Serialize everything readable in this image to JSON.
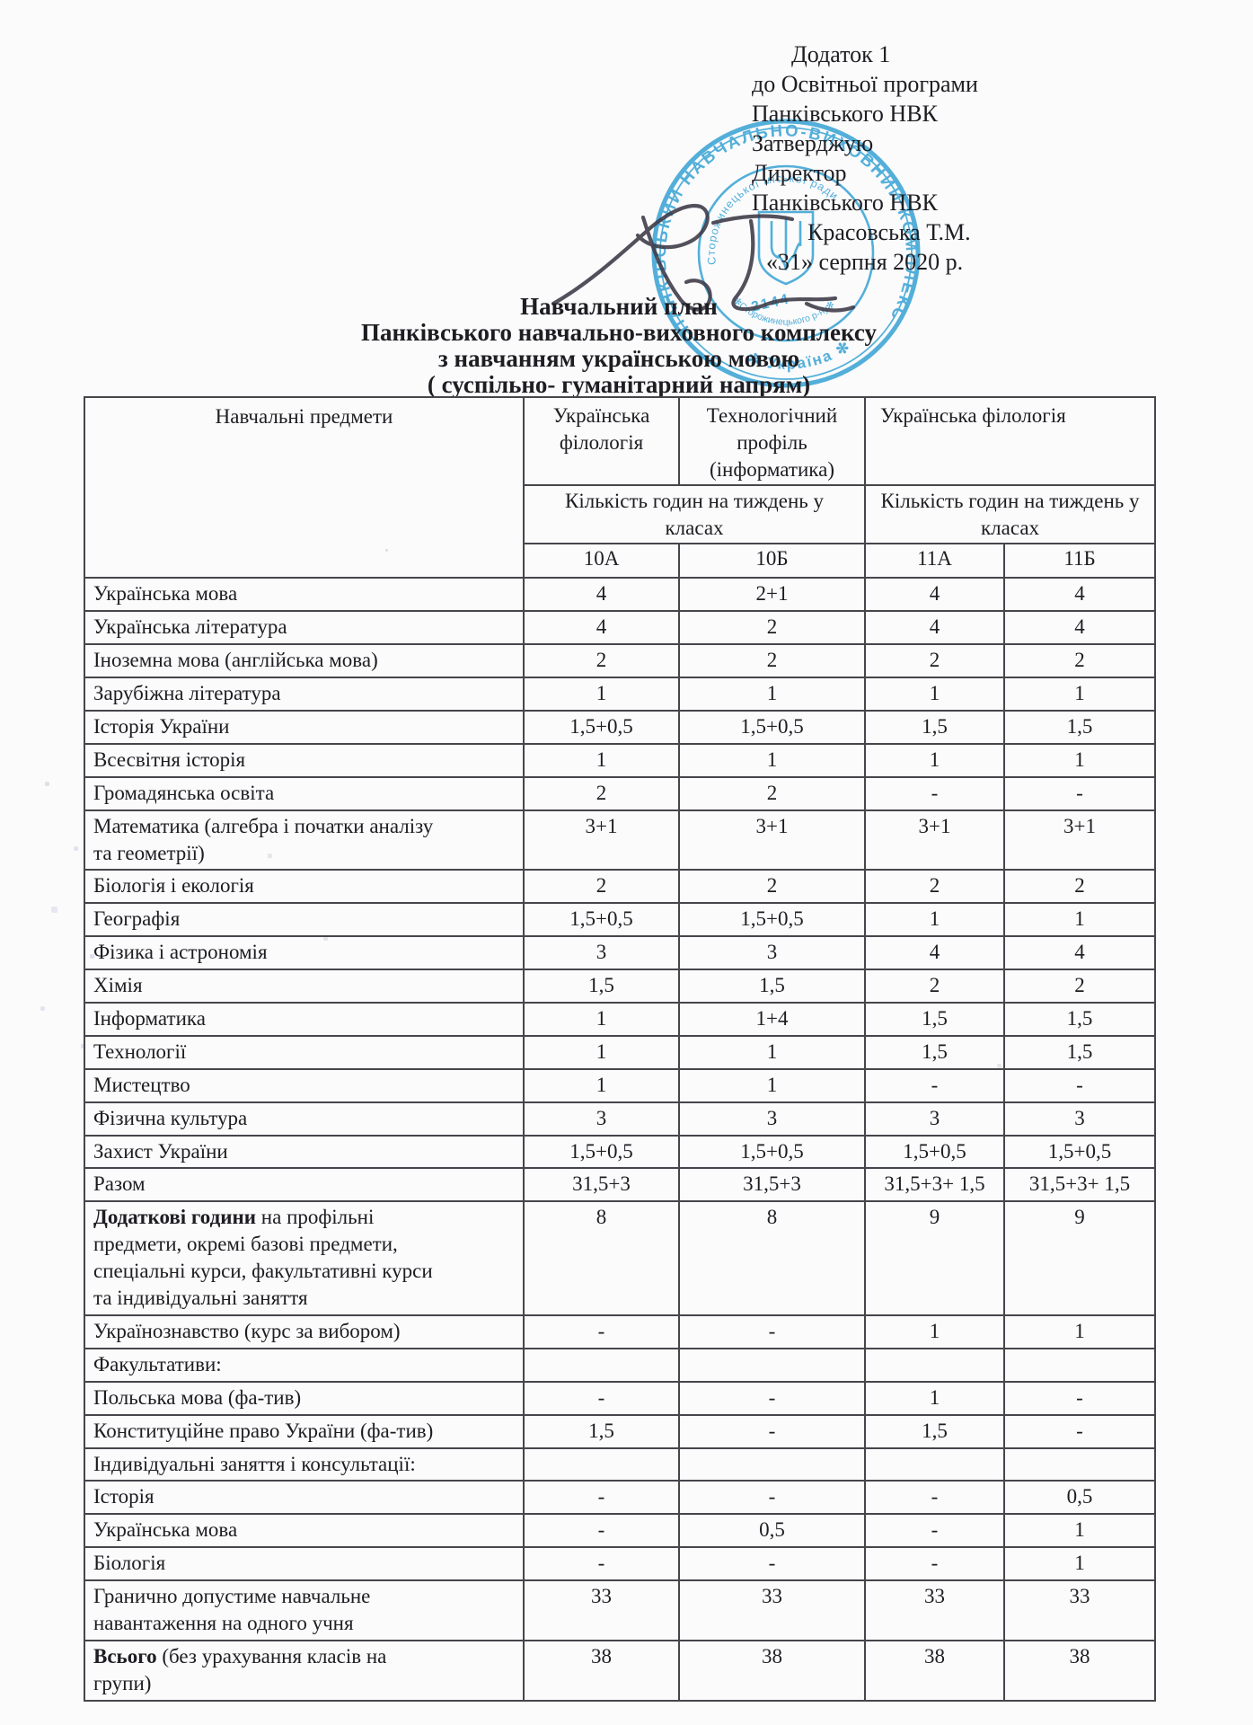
{
  "approval": {
    "lines": [
      "Додаток 1",
      "до Освітньої програми",
      "Панківського НВК",
      "Затверджую",
      "Директор",
      "Панківського НВК",
      "Красовська Т.М.",
      "«31» серпня 2020 р."
    ]
  },
  "title": {
    "lines": [
      "Навчальний план",
      "Панківського навчально-виховного комплексу",
      "з навчанням українською мовою",
      "( суспільно- гуманітарний напрям)"
    ]
  },
  "stamp": {
    "outer_text": "ПАНКІВСЬКИЙ НАВЧАЛЬНО-ВИХОВНИЙ КОМПЛЕКС",
    "bottom_text": "✻ Україна ✻",
    "inner_top_text": "Сторожинецької міської ради",
    "inner_bottom_text": "✻Сторожинецького р-ну✻",
    "number": "2144",
    "ink_color": "#2f9fd2"
  },
  "signature": {
    "name": "director-signature",
    "ink_color": "#3c3947"
  },
  "table": {
    "col1_header": "Навчальні предмети",
    "profiles": [
      "Українська філологія",
      "Технологічний профіль (інформатика)",
      "Українська філологія"
    ],
    "hours_caption": "Кількість годин на тиждень у класах",
    "classes": [
      "10А",
      "10Б",
      "11А",
      "11Б"
    ],
    "rows": [
      {
        "label": "Українська мова",
        "values": [
          "4",
          "2+1",
          "4",
          "4"
        ]
      },
      {
        "label": "Українська література",
        "values": [
          "4",
          "2",
          "4",
          "4"
        ]
      },
      {
        "label": "Іноземна мова (англійська мова)",
        "values": [
          "2",
          "2",
          "2",
          "2"
        ]
      },
      {
        "label": "Зарубіжна література",
        "values": [
          "1",
          "1",
          "1",
          "1"
        ]
      },
      {
        "label": "Історія України",
        "values": [
          "1,5+0,5",
          "1,5+0,5",
          "1,5",
          "1,5"
        ]
      },
      {
        "label": "Всесвітня історія",
        "values": [
          "1",
          "1",
          "1",
          "1"
        ]
      },
      {
        "label": "Громадянська освіта",
        "values": [
          "2",
          "2",
          "-",
          "-"
        ]
      },
      {
        "label": "Математика (алгебра і початки аналізу\nта геометрії)",
        "values": [
          "3+1",
          "3+1",
          "3+1",
          "3+1"
        ]
      },
      {
        "label": "Біологія і екологія",
        "values": [
          "2",
          "2",
          "2",
          "2"
        ]
      },
      {
        "label": "Географія",
        "values": [
          "1,5+0,5",
          "1,5+0,5",
          "1",
          "1"
        ]
      },
      {
        "label": "Фізика і астрономія",
        "values": [
          "3",
          "3",
          "4",
          "4"
        ]
      },
      {
        "label": "Хімія",
        "values": [
          "1,5",
          "1,5",
          "2",
          "2"
        ]
      },
      {
        "label": "Інформатика",
        "values": [
          "1",
          "1+4",
          "1,5",
          "1,5"
        ]
      },
      {
        "label": "Технології",
        "values": [
          "1",
          "1",
          "1,5",
          "1,5"
        ]
      },
      {
        "label": "Мистецтво",
        "values": [
          "1",
          "1",
          "-",
          "-"
        ]
      },
      {
        "label": "Фізична культура",
        "values": [
          "3",
          "3",
          "3",
          "3"
        ]
      },
      {
        "label": "Захист України",
        "values": [
          "1,5+0,5",
          "1,5+0,5",
          "1,5+0,5",
          "1,5+0,5"
        ]
      },
      {
        "label": "Разом",
        "bold": true,
        "values": [
          "31,5+3",
          "31,5+3",
          "31,5+3+ 1,5",
          "31,5+3+ 1,5"
        ]
      },
      {
        "label_bold": "Додаткові години",
        "label_rest": " на профільні\nпредмети, окремі базові предмети,\nспеціальні курси, факультативні курси\nта індивідуальні заняття",
        "values_bold": true,
        "values": [
          "8",
          "8",
          "9",
          "9"
        ]
      },
      {
        "label": "Українознавство (курс за вибором)",
        "values": [
          "-",
          "-",
          "1",
          "1"
        ]
      },
      {
        "label": "Факультативи:",
        "bold": true,
        "values": [
          "",
          "",
          "",
          ""
        ]
      },
      {
        "label": "Польська мова (фа-тив)",
        "values": [
          "-",
          "-",
          "1",
          "-"
        ]
      },
      {
        "label": "Конституційне право України (фа-тив)",
        "values": [
          "1,5",
          "-",
          "1,5",
          "-"
        ]
      },
      {
        "label": "Індивідуальні заняття і консультації:",
        "values": [
          "",
          "",
          "",
          ""
        ]
      },
      {
        "label": "Історія",
        "values": [
          "-",
          "-",
          "-",
          "0,5"
        ]
      },
      {
        "label": "Українська мова",
        "values": [
          "-",
          "0,5",
          "-",
          "1"
        ]
      },
      {
        "label": "Біологія",
        "values": [
          "-",
          "-",
          "-",
          "1"
        ]
      },
      {
        "label": "Гранично допустиме навчальне\nнавантаження на одного учня",
        "bold": true,
        "values": [
          "33",
          "33",
          "33",
          "33"
        ]
      },
      {
        "label_bold": "Всього",
        "label_rest": " (без урахування класів на\nгрупи)",
        "values_bold": true,
        "values": [
          "38",
          "38",
          "38",
          "38"
        ]
      }
    ]
  }
}
